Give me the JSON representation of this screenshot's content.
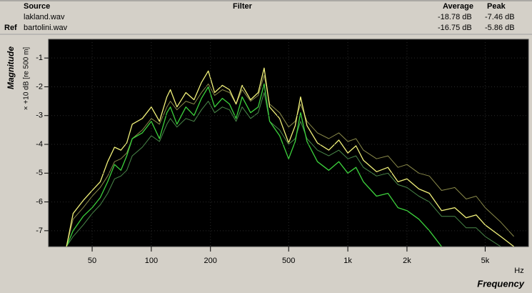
{
  "header": {
    "columns": [
      "Source",
      "Filter",
      "Average",
      "Peak"
    ],
    "rows": [
      {
        "source": "lakland.wav",
        "average": "-18.78 dB",
        "peak": "-7.46 dB"
      },
      {
        "tag": "Ref",
        "source": "bartolini.wav",
        "average": "-16.75 dB",
        "peak": "-5.86 dB"
      }
    ]
  },
  "chart_data": {
    "type": "line",
    "ylabel": "Magnitude",
    "ysublabel": "× +10 dB [re 500 m]",
    "xlabel": "Frequency",
    "xunit": "Hz",
    "xscale": "log",
    "grid": true,
    "xlim": [
      30,
      8300
    ],
    "ylim": [
      -7.55,
      -0.35
    ],
    "xticks": [
      50,
      100,
      200,
      500,
      {
        "value": 1000,
        "label": "1k"
      },
      {
        "value": 2000,
        "label": "2k"
      },
      {
        "value": 5000,
        "label": "5k"
      }
    ],
    "yticks": [
      -1,
      -2,
      -3,
      -4,
      -5,
      -6,
      -7
    ],
    "x": [
      37,
      40,
      45,
      50,
      55,
      60,
      65,
      70,
      75,
      80,
      90,
      100,
      110,
      120,
      125,
      135,
      150,
      165,
      180,
      195,
      210,
      230,
      250,
      270,
      290,
      320,
      350,
      375,
      400,
      450,
      500,
      540,
      575,
      620,
      700,
      800,
      900,
      1000,
      1100,
      1200,
      1400,
      1600,
      1800,
      2000,
      2300,
      2600,
      3000,
      3500,
      4000,
      4500,
      5000,
      6000,
      7000
    ],
    "series": [
      {
        "color": "#8a8a4a",
        "width": 1,
        "values": [
          -7.55,
          -6.6,
          -6.2,
          -5.8,
          -5.5,
          -5.1,
          -4.6,
          -4.5,
          -4.3,
          -3.8,
          -3.5,
          -3.1,
          -3.3,
          -2.7,
          -2.5,
          -2.8,
          -2.5,
          -2.6,
          -2.2,
          -1.9,
          -2.3,
          -2.1,
          -2.2,
          -2.6,
          -2.1,
          -2.5,
          -2.3,
          -1.6,
          -2.6,
          -2.9,
          -3.4,
          -3.2,
          -2.6,
          -3.2,
          -3.6,
          -3.8,
          -3.6,
          -3.9,
          -3.8,
          -4.2,
          -4.5,
          -4.4,
          -4.8,
          -4.7,
          -5.0,
          -5.1,
          -5.6,
          -5.5,
          -5.9,
          -5.8,
          -6.2,
          -6.7,
          -7.2
        ]
      },
      {
        "color": "#4a8a4a",
        "width": 1,
        "values": [
          -7.55,
          -7.2,
          -6.8,
          -6.4,
          -6.1,
          -5.7,
          -5.2,
          -5.1,
          -4.9,
          -4.4,
          -4.1,
          -3.7,
          -3.9,
          -3.3,
          -3.1,
          -3.4,
          -3.1,
          -3.2,
          -2.8,
          -2.5,
          -2.9,
          -2.7,
          -2.8,
          -3.2,
          -2.7,
          -3.1,
          -2.9,
          -2.2,
          -3.2,
          -3.5,
          -4.0,
          -3.8,
          -3.2,
          -3.8,
          -4.2,
          -4.4,
          -4.2,
          -4.5,
          -4.4,
          -4.8,
          -5.1,
          -5.0,
          -5.4,
          -5.5,
          -5.8,
          -6.0,
          -6.5,
          -6.5,
          -6.9,
          -6.9,
          -7.2,
          -7.55,
          null
        ]
      },
      {
        "name": "bartolini.wav",
        "color": "#3cd23c",
        "width": 1.3,
        "values": [
          -7.55,
          -7.0,
          -6.5,
          -6.2,
          -5.85,
          -5.3,
          -4.7,
          -4.9,
          -4.4,
          -3.8,
          -3.6,
          -3.2,
          -3.8,
          -2.9,
          -2.7,
          -3.3,
          -2.7,
          -3.0,
          -2.4,
          -2.0,
          -2.7,
          -2.4,
          -2.6,
          -3.1,
          -2.35,
          -2.9,
          -2.7,
          -1.9,
          -3.2,
          -3.7,
          -4.5,
          -3.9,
          -2.9,
          -3.9,
          -4.6,
          -4.9,
          -4.6,
          -5.0,
          -4.8,
          -5.3,
          -5.8,
          -5.7,
          -6.2,
          -6.3,
          -6.6,
          -7.0,
          -7.55,
          null,
          null,
          null,
          null,
          null,
          null
        ]
      },
      {
        "name": "lakland.wav",
        "color": "#f2f27a",
        "width": 1.3,
        "values": [
          -7.55,
          -6.4,
          -5.95,
          -5.6,
          -5.3,
          -4.6,
          -4.1,
          -4.2,
          -3.95,
          -3.3,
          -3.1,
          -2.7,
          -3.2,
          -2.35,
          -2.1,
          -2.7,
          -2.2,
          -2.45,
          -1.85,
          -1.45,
          -2.2,
          -1.95,
          -2.1,
          -2.6,
          -1.95,
          -2.45,
          -2.2,
          -1.35,
          -2.7,
          -3.1,
          -3.95,
          -3.35,
          -2.35,
          -3.35,
          -3.95,
          -4.2,
          -3.85,
          -4.3,
          -4.05,
          -4.55,
          -4.95,
          -4.8,
          -5.3,
          -5.2,
          -5.55,
          -5.7,
          -6.3,
          -6.2,
          -6.55,
          -6.45,
          -6.8,
          -7.2,
          -7.55
        ]
      }
    ]
  }
}
